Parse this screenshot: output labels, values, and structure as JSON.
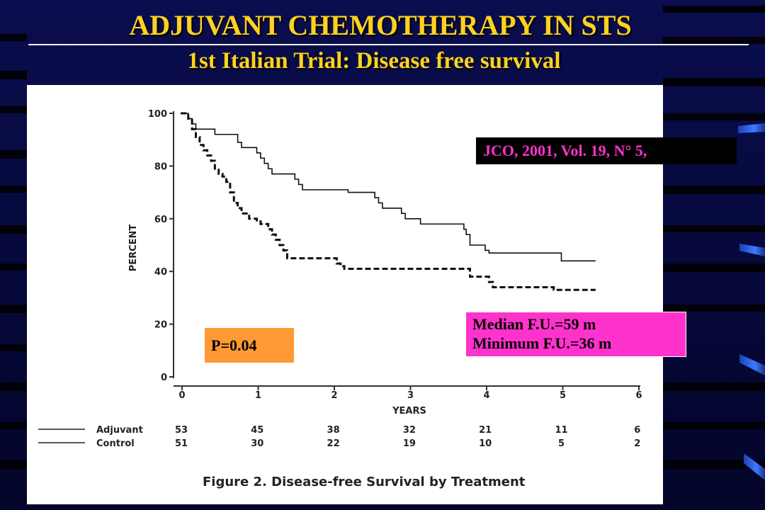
{
  "slide": {
    "title": "ADJUVANT CHEMOTHERAPY IN STS",
    "subtitle": "1st Italian Trial: Disease free survival",
    "colors": {
      "background": "#06083e",
      "title": "#ffd21f",
      "accent_blue": "#2a63e6"
    }
  },
  "labels": {
    "citation": "JCO, 2001, Vol. 19, N° 5,",
    "median_fu": "Median F.U.=59 m",
    "minimum_fu": "Minimum F.U.=36 m",
    "p_value": "P=0.04"
  },
  "chart_data": {
    "type": "line",
    "title": "Figure 2. Disease-free Survival by Treatment",
    "xlabel": "YEARS",
    "ylabel": "PERCENT",
    "xlim": [
      0,
      6
    ],
    "ylim": [
      0,
      100
    ],
    "x_ticks": [
      "0",
      "1",
      "2",
      "3",
      "4",
      "5",
      "6"
    ],
    "y_ticks": [
      "0",
      "20",
      "40",
      "60",
      "80",
      "100"
    ],
    "series": [
      {
        "name": "Adjuvant",
        "style": "solid",
        "step_points": [
          [
            0,
            100
          ],
          [
            0.1,
            98
          ],
          [
            0.15,
            96
          ],
          [
            0.2,
            94
          ],
          [
            0.4,
            94
          ],
          [
            0.45,
            92
          ],
          [
            0.7,
            92
          ],
          [
            0.75,
            89
          ],
          [
            0.8,
            87
          ],
          [
            0.95,
            87
          ],
          [
            1.0,
            85
          ],
          [
            1.05,
            83
          ],
          [
            1.1,
            81
          ],
          [
            1.15,
            79
          ],
          [
            1.2,
            77
          ],
          [
            1.45,
            77
          ],
          [
            1.5,
            75
          ],
          [
            1.55,
            73
          ],
          [
            1.6,
            71
          ],
          [
            2.15,
            71
          ],
          [
            2.2,
            70
          ],
          [
            2.5,
            70
          ],
          [
            2.55,
            68
          ],
          [
            2.6,
            66
          ],
          [
            2.65,
            64
          ],
          [
            2.85,
            64
          ],
          [
            2.9,
            62
          ],
          [
            2.95,
            60
          ],
          [
            3.1,
            60
          ],
          [
            3.15,
            58
          ],
          [
            3.7,
            58
          ],
          [
            3.72,
            56
          ],
          [
            3.75,
            54
          ],
          [
            3.8,
            52
          ],
          [
            3.8,
            50
          ],
          [
            3.95,
            50
          ],
          [
            4.0,
            48
          ],
          [
            4.05,
            47
          ],
          [
            4.95,
            47
          ],
          [
            5.0,
            44
          ],
          [
            5.45,
            44
          ]
        ]
      },
      {
        "name": "Control",
        "style": "dashed",
        "step_points": [
          [
            0,
            100
          ],
          [
            0.1,
            98
          ],
          [
            0.15,
            94
          ],
          [
            0.2,
            91
          ],
          [
            0.25,
            88
          ],
          [
            0.3,
            86
          ],
          [
            0.35,
            84
          ],
          [
            0.4,
            82
          ],
          [
            0.45,
            79
          ],
          [
            0.5,
            77
          ],
          [
            0.55,
            76
          ],
          [
            0.6,
            74
          ],
          [
            0.65,
            70
          ],
          [
            0.7,
            66
          ],
          [
            0.75,
            64
          ],
          [
            0.8,
            62
          ],
          [
            0.9,
            60
          ],
          [
            1.0,
            59
          ],
          [
            1.05,
            58
          ],
          [
            1.15,
            56
          ],
          [
            1.2,
            54
          ],
          [
            1.25,
            52
          ],
          [
            1.3,
            50
          ],
          [
            1.35,
            48
          ],
          [
            1.4,
            45
          ],
          [
            2.0,
            45
          ],
          [
            2.05,
            43
          ],
          [
            2.1,
            42
          ],
          [
            2.15,
            41
          ],
          [
            3.75,
            41
          ],
          [
            3.8,
            38
          ],
          [
            4.0,
            38
          ],
          [
            4.05,
            36
          ],
          [
            4.1,
            34
          ],
          [
            4.85,
            34
          ],
          [
            4.9,
            33
          ],
          [
            5.45,
            33
          ]
        ]
      }
    ],
    "at_risk": {
      "times": [
        "0",
        "1",
        "2",
        "3",
        "4",
        "5",
        "6"
      ],
      "rows": [
        {
          "name": "Adjuvant",
          "style": "solid",
          "values": [
            "53",
            "45",
            "38",
            "32",
            "21",
            "11",
            "6"
          ]
        },
        {
          "name": "Control",
          "style": "solid",
          "values": [
            "51",
            "30",
            "22",
            "19",
            "10",
            "5",
            "2"
          ]
        }
      ]
    }
  }
}
